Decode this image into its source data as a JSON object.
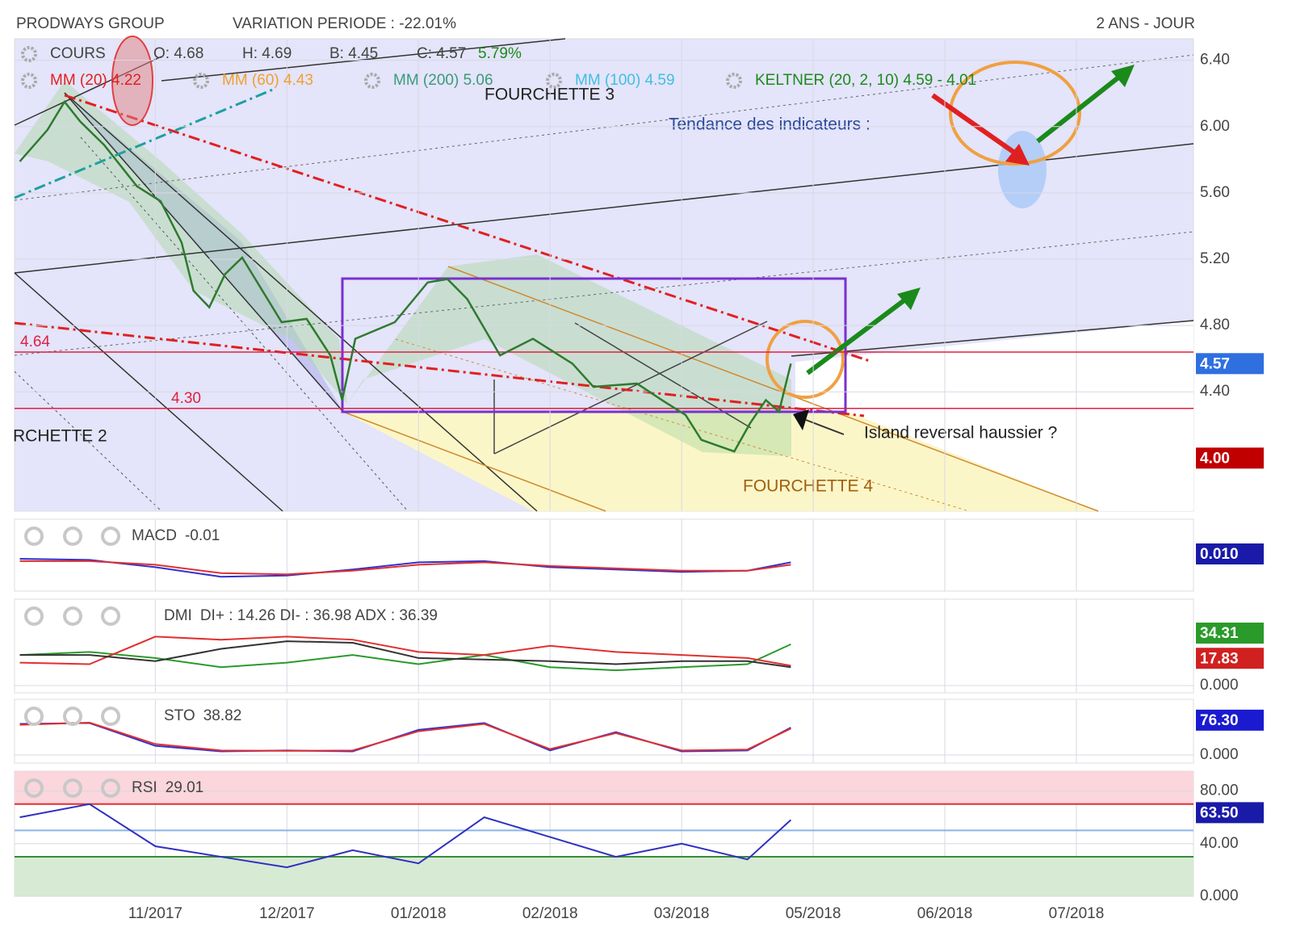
{
  "header": {
    "title": "PRODWAYS GROUP",
    "variation": "VARIATION PERIODE : -22.01%",
    "period": "2 ANS - JOUR"
  },
  "chart_data": [
    {
      "type": "line",
      "legend_quote": [
        "O: 4.68",
        "H: 4.69",
        "B: 4.45",
        "C: 4.57"
      ],
      "change": "5.79%",
      "change_color": "#1a8a1a",
      "indicators": [
        {
          "text": "MM (20) 4.22",
          "color": "#e02020"
        },
        {
          "text": "MM (60) 4.43",
          "color": "#f0a030"
        },
        {
          "text": "MM (200) 5.06",
          "color": "#3a9a7a"
        },
        {
          "text": "MM (100) 4.59",
          "color": "#40c0e0"
        },
        {
          "text": "KELTNER (20, 2, 10) 4.59 - 4.01",
          "color": "#1a8a1a"
        }
      ],
      "annotations": [
        "FOURCHETTE 3",
        "Tendance des indicateurs :",
        "RCHETTE 2",
        "FOURCHETTE 4",
        "Island reversal haussier ?"
      ],
      "x": [
        -1.03,
        -0.82,
        -0.69,
        -0.57,
        -0.39,
        -0.14,
        0.04,
        0.2,
        0.29,
        0.41,
        0.53,
        0.66,
        0.96,
        1.15,
        1.33,
        1.42,
        1.52,
        1.82,
        2.07,
        2.22,
        2.37,
        2.62,
        2.87,
        3.17,
        3.33,
        3.66,
        3.85,
        4.03,
        4.15,
        4.4,
        4.52,
        4.64,
        4.74,
        4.83
      ],
      "series": [
        {
          "name": "COURS",
          "color": "#2f7a2f",
          "values": [
            5.79,
            5.98,
            6.15,
            6.03,
            5.89,
            5.64,
            5.55,
            5.3,
            5.01,
            4.91,
            5.11,
            5.21,
            4.82,
            4.84,
            4.62,
            4.35,
            4.72,
            4.82,
            5.06,
            5.08,
            4.96,
            4.62,
            4.72,
            4.57,
            4.43,
            4.45,
            4.35,
            4.26,
            4.11,
            4.04,
            4.21,
            4.35,
            4.28,
            4.57
          ]
        }
      ],
      "xlim": [
        -1.07,
        7.89
      ],
      "xticks": [
        {
          "value": 0,
          "label": "11/2017"
        },
        {
          "value": 1,
          "label": "12/2017"
        },
        {
          "value": 2,
          "label": "01/2018"
        },
        {
          "value": 3,
          "label": "02/2018"
        },
        {
          "value": 4,
          "label": "03/2018"
        },
        {
          "value": 5,
          "label": "05/2018"
        },
        {
          "value": 6,
          "label": "06/2018"
        },
        {
          "value": 7,
          "label": "07/2018"
        }
      ],
      "ylim": [
        3.68,
        6.53
      ],
      "yticks": [
        {
          "value": 4.4,
          "label": "4.40"
        },
        {
          "value": 4.8,
          "label": "4.80"
        },
        {
          "value": 5.2,
          "label": "5.20"
        },
        {
          "value": 5.6,
          "label": "5.60"
        },
        {
          "value": 6,
          "label": "6.00"
        },
        {
          "value": 6.4,
          "label": "6.40"
        }
      ],
      "levels": [
        4.64,
        {
          "value": 4.3,
          "label": "4.30"
        }
      ],
      "level_color": "#e02040",
      "badges": [
        {
          "value": 4.57,
          "color": "#2f6fe0"
        },
        {
          "value": 4,
          "label": "4.00",
          "color": "#c00000"
        }
      ],
      "grid": true
    },
    {
      "type": "line",
      "title": "MACD",
      "reading": "-0.01",
      "x": [
        -1.03,
        -0.5,
        0,
        0.5,
        1,
        1.5,
        2,
        2.5,
        3,
        3.5,
        4,
        4.5,
        4.83
      ],
      "series": [
        {
          "color": "#3030d0",
          "values": [
            -0.03,
            -0.04,
            -0.1,
            -0.18,
            -0.17,
            -0.12,
            -0.06,
            -0.05,
            -0.1,
            -0.12,
            -0.14,
            -0.13,
            -0.06
          ]
        },
        {
          "color": "#e03030",
          "values": [
            -0.05,
            -0.05,
            -0.08,
            -0.15,
            -0.16,
            -0.13,
            -0.08,
            -0.06,
            -0.09,
            -0.11,
            -0.13,
            -0.13,
            -0.08
          ]
        }
      ],
      "ylim": [
        -0.3,
        0.3
      ],
      "yticks": [],
      "badges": [
        {
          "value": 0.01,
          "label": "0.010",
          "color": "#1a1aa8"
        }
      ]
    },
    {
      "type": "line",
      "title": "DMI",
      "reading": "DI+ : 14.26 DI- : 36.98 ADX : 36.39",
      "x": [
        -1.03,
        -0.5,
        0,
        0.5,
        1,
        1.5,
        2,
        2.5,
        3,
        3.5,
        4,
        4.5,
        4.83
      ],
      "series": [
        {
          "color": "#2a9a2a",
          "values": [
            20,
            22,
            18,
            12,
            15,
            20,
            14,
            20,
            12,
            10,
            12,
            14,
            27
          ]
        },
        {
          "color": "#e03030",
          "values": [
            15,
            14,
            32,
            30,
            32,
            30,
            22,
            20,
            26,
            22,
            20,
            18,
            13
          ]
        },
        {
          "color": "#333333",
          "values": [
            20,
            20,
            16,
            24,
            29,
            28,
            18,
            17,
            16,
            14,
            16,
            16,
            12
          ]
        }
      ],
      "ylim": [
        -4.75,
        56.5
      ],
      "yticks": [
        {
          "value": 0,
          "label": "0.000"
        }
      ],
      "badges": [
        {
          "value": 34.31,
          "color": "#2a9a2a"
        },
        {
          "value": 17.83,
          "color": "#d02020"
        }
      ]
    },
    {
      "type": "line",
      "title": "STO",
      "reading": "38.82",
      "x": [
        -1.03,
        -0.5,
        0,
        0.5,
        1,
        1.5,
        2,
        2.5,
        3,
        3.5,
        4,
        4.5,
        4.83
      ],
      "series": [
        {
          "color": "#3030d0",
          "values": [
            68,
            70,
            20,
            8,
            10,
            8,
            55,
            70,
            10,
            50,
            8,
            10,
            60
          ]
        },
        {
          "color": "#e03030",
          "values": [
            66,
            71,
            24,
            10,
            9,
            10,
            52,
            68,
            13,
            48,
            10,
            12,
            58
          ]
        }
      ],
      "ylim": [
        -17.7,
        122
      ],
      "yticks": [
        {
          "value": 0,
          "label": "0.000"
        }
      ],
      "badges": [
        {
          "value": 76.3,
          "label": "76.30",
          "color": "#1a1ad0"
        }
      ]
    },
    {
      "type": "line",
      "title": "RSI",
      "reading": "29.01",
      "x": [
        -1.03,
        -0.5,
        0,
        0.5,
        1,
        1.5,
        2,
        2.5,
        3,
        3.5,
        4,
        4.5,
        4.83
      ],
      "series": [
        {
          "color": "#3030c0",
          "values": [
            60,
            70,
            38,
            30,
            22,
            35,
            25,
            60,
            45,
            30,
            40,
            28,
            58
          ]
        }
      ],
      "ylim": [
        0,
        95
      ],
      "yticks": [
        {
          "value": 0,
          "label": "0.000"
        },
        {
          "value": 40,
          "label": "40.00"
        },
        {
          "value": 80,
          "label": "80.00"
        }
      ],
      "levels": [
        70,
        50,
        30
      ],
      "level_colors": [
        "#e03030",
        "#8ab4e8",
        "#3a8a3a"
      ],
      "badges": [
        {
          "value": 63.5,
          "label": "63.50",
          "color": "#1a1aa8"
        }
      ]
    }
  ]
}
